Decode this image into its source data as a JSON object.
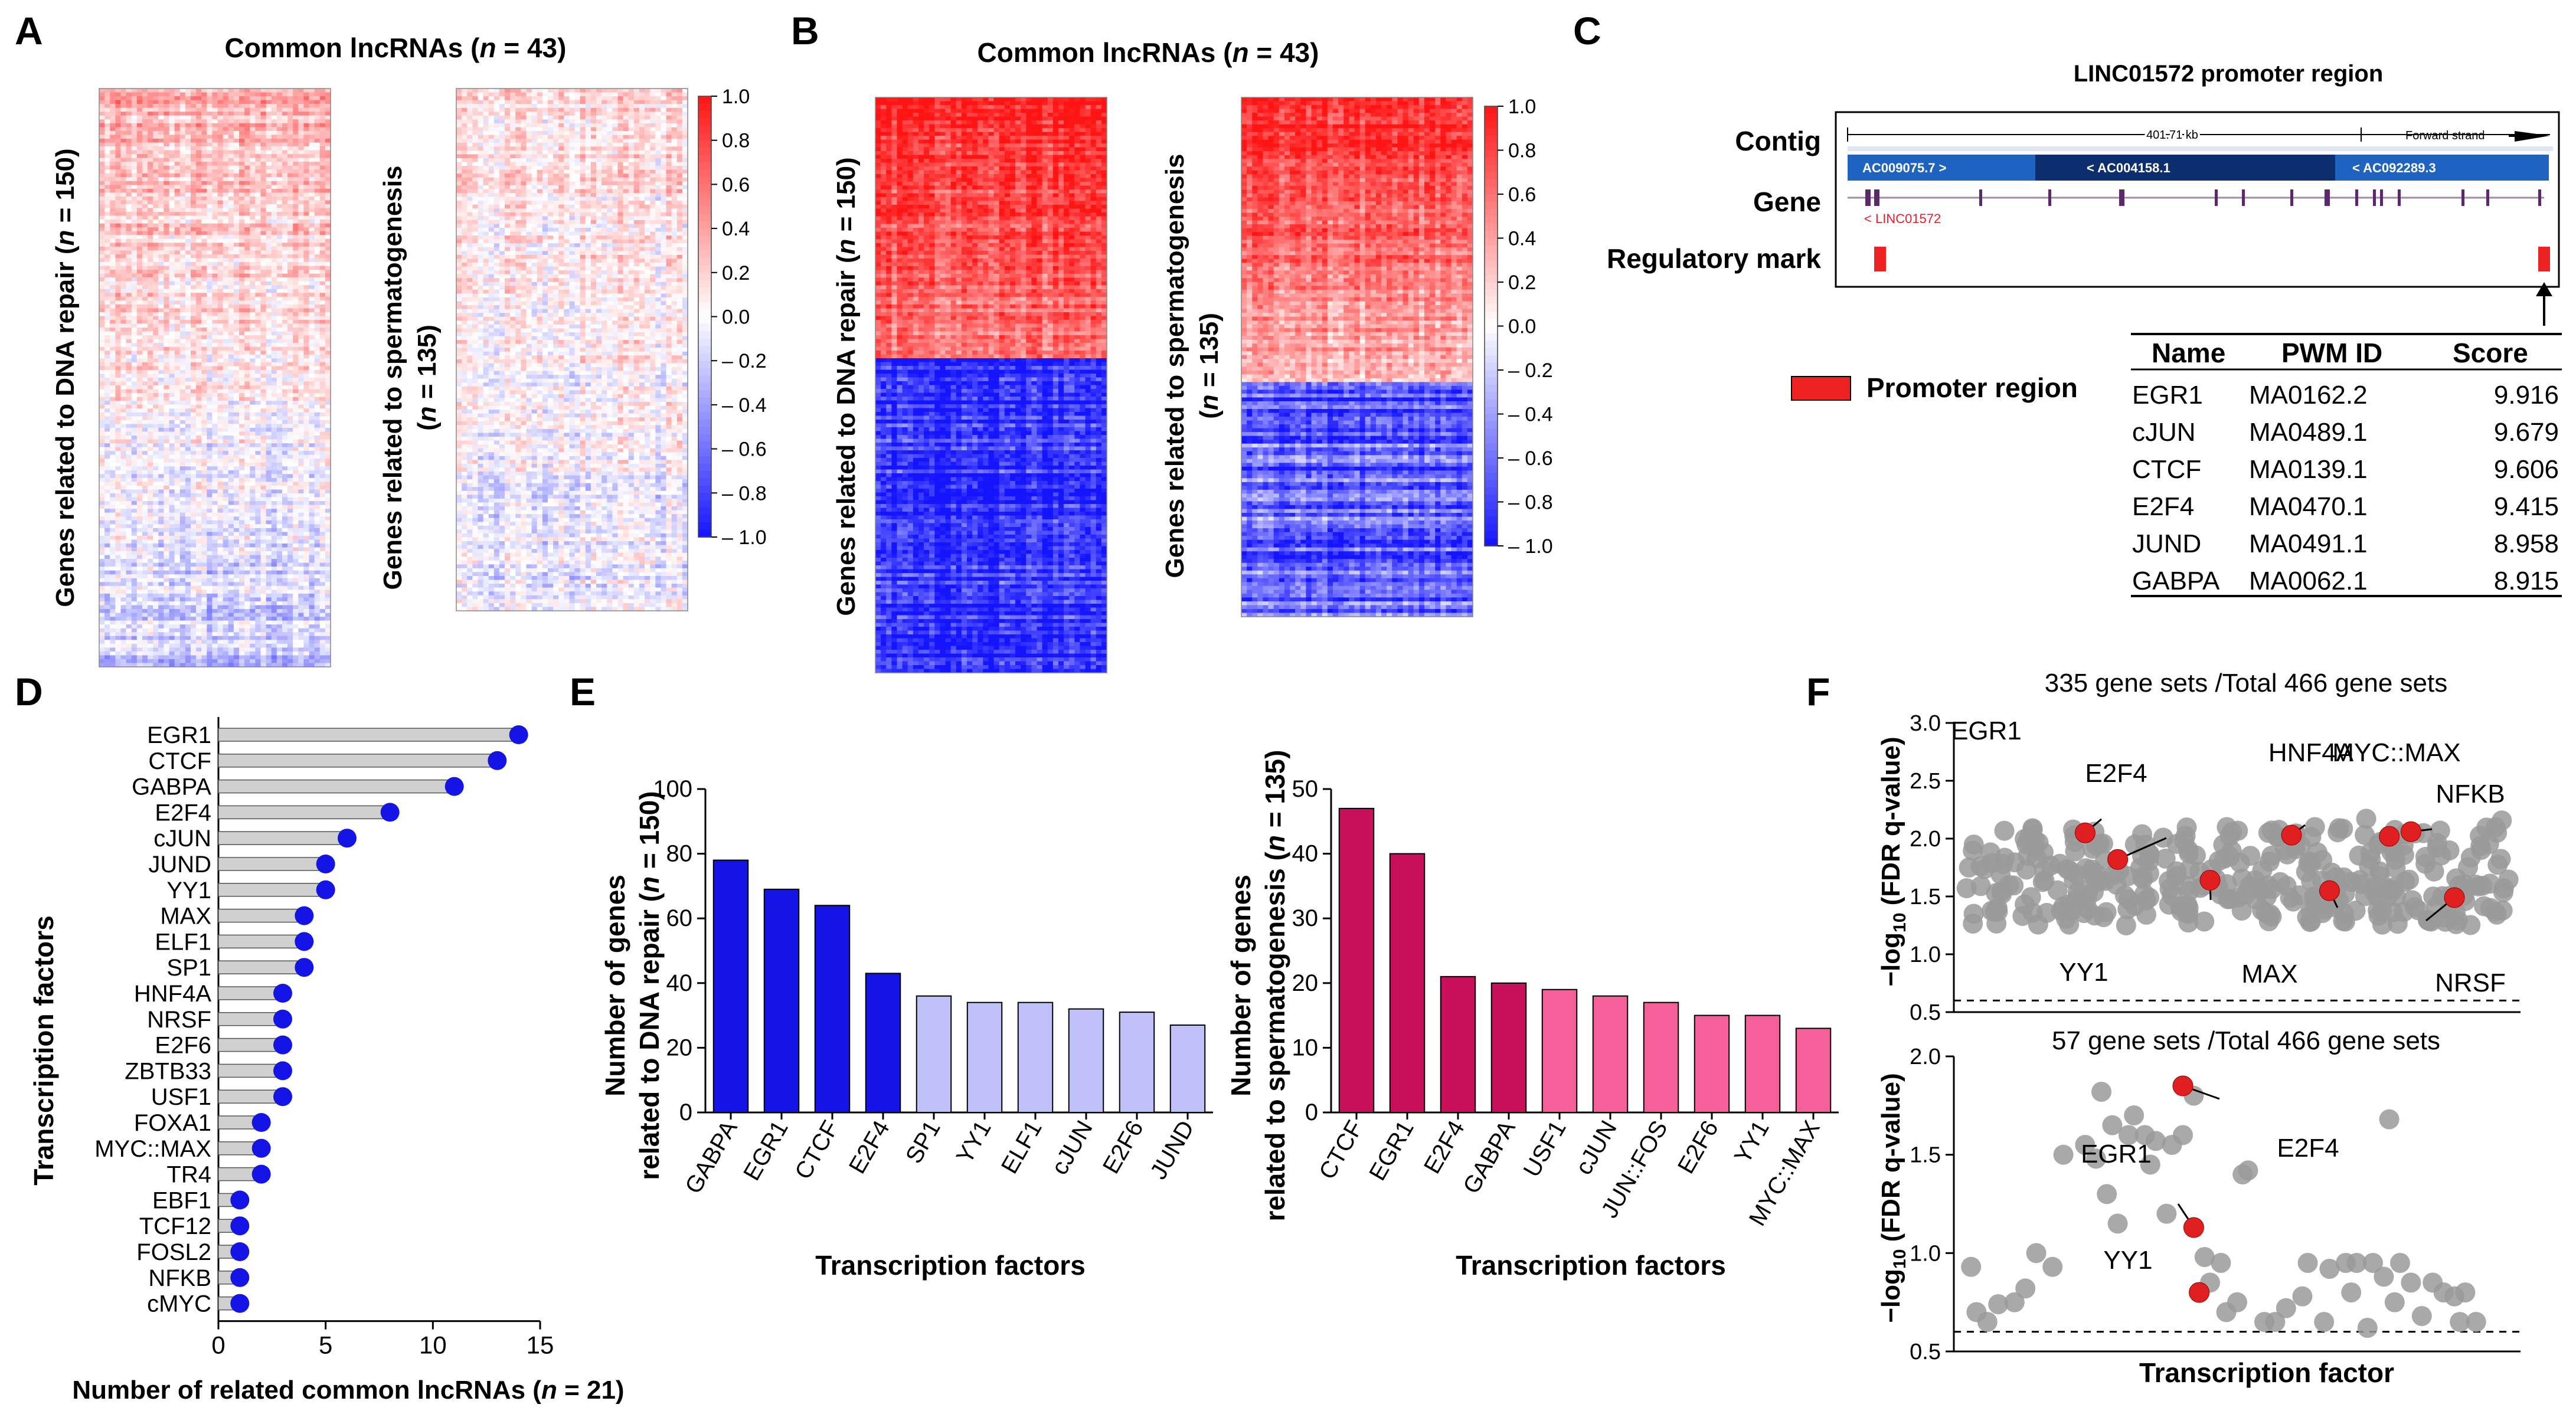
{
  "colors": {
    "red": "#ee1c1c",
    "blue": "#1414e6",
    "grey": "#9a9a9a",
    "pink_dark": "#c8105a",
    "pink_light": "#f5609a",
    "lavender": "#c0c0f8"
  },
  "panel_letters": [
    "A",
    "B",
    "C",
    "D",
    "E",
    "F"
  ],
  "chart_data": [
    {
      "panel": "A",
      "type": "heatmap",
      "title": "Common lncRNAs (n = 43)",
      "title_main": "Common lncRNAs (",
      "title_n": "n",
      "title_val": " = 43)",
      "left_ylabel": "Genes related to DNA repair (n = 150)",
      "left_ylabel_main": "Genes related to DNA repair (",
      "left_ylabel_n": "n",
      "left_ylabel_val": " = 150)",
      "right_ylabel_line1": "Genes related to spermatogenesis",
      "right_ylabel_line2": "(n = 135)",
      "right_ylabel2_pre": "(",
      "right_ylabel2_n": "n",
      "right_ylabel2_val": " = 135)",
      "rows_left": 150,
      "rows_right": 135,
      "cols": 43,
      "colorbar_ticks": [
        "1.0",
        "0.8",
        "0.6",
        "0.4",
        "0.2",
        "0.0",
        "– 0.2",
        "– 0.4",
        "– 0.6",
        "– 0.8",
        "– 1.0"
      ],
      "value_range": [
        -1,
        1
      ]
    },
    {
      "panel": "B",
      "type": "heatmap",
      "title": "Common lncRNAs (n = 43)",
      "title_main": "Common lncRNAs (",
      "title_n": "n",
      "title_val": " = 43)",
      "left_ylabel": "Genes related to DNA repair (n = 150)",
      "left_ylabel_main": "Genes related to DNA repair (",
      "left_ylabel_n": "n",
      "left_ylabel_val": " = 150)",
      "right_ylabel_line1": "Genes related to spermatogenesis",
      "right_ylabel_line2": "(n = 135)",
      "right_ylabel2_pre": "(",
      "right_ylabel2_n": "n",
      "right_ylabel2_val": " = 135)",
      "rows_left": 150,
      "rows_right": 135,
      "cols": 43,
      "colorbar_ticks": [
        "1.0",
        "0.8",
        "0.6",
        "0.4",
        "0.2",
        "0.0",
        "– 0.2",
        "– 0.4",
        "– 0.6",
        "– 0.8",
        "– 1.0"
      ],
      "value_range": [
        -1,
        1
      ]
    },
    {
      "panel": "C",
      "type": "table",
      "title": "LINC01572 promoter region",
      "track_labels": [
        "Contig",
        "Gene",
        "Regulatory mark"
      ],
      "scale_label": "401.71 kb",
      "strand_label": "Forward strand",
      "contigs": [
        "AC009075.7 >",
        "< AC004158.1",
        "< AC092289.3"
      ],
      "gene_label": "< LINC01572",
      "legend": "Promoter region",
      "columns": [
        "Name",
        "PWM ID",
        "Score"
      ],
      "rows": [
        [
          "EGR1",
          "MA0162.2",
          "9.916"
        ],
        [
          "cJUN",
          "MA0489.1",
          "9.679"
        ],
        [
          "CTCF",
          "MA0139.1",
          "9.606"
        ],
        [
          "E2F4",
          "MA0470.1",
          "9.415"
        ],
        [
          "JUND",
          "MA0491.1",
          "8.958"
        ],
        [
          "GABPA",
          "MA0062.1",
          "8.915"
        ]
      ]
    },
    {
      "panel": "D",
      "type": "bar",
      "xlabel": "Number of related common lncRNAs (n = 21)",
      "xlabel_main": "Number of related common lncRNAs (",
      "xlabel_n": "n",
      "xlabel_val": " = 21)",
      "ylabel": "Transcription factors",
      "categories": [
        "EGR1",
        "CTCF",
        "GABPA",
        "E2F4",
        "cJUN",
        "JUND",
        "YY1",
        "MAX",
        "ELF1",
        "SP1",
        "HNF4A",
        "NRSF",
        "E2F6",
        "ZBTB33",
        "USF1",
        "FOXA1",
        "MYC::MAX",
        "TR4",
        "EBF1",
        "TCF12",
        "FOSL2",
        "NFKB",
        "cMYC"
      ],
      "values": [
        14,
        13,
        11,
        8,
        6,
        5,
        5,
        4,
        4,
        4,
        3,
        3,
        3,
        3,
        3,
        2,
        2,
        2,
        1,
        1,
        1,
        1,
        1
      ],
      "xlim": [
        0,
        15
      ],
      "xticks": [
        "0",
        "5",
        "10",
        "15"
      ]
    },
    {
      "panel": "E-left",
      "type": "bar",
      "ylabel": "Number of genes related to DNA repair (n = 150)",
      "ylabel_line1": "Number of genes",
      "ylabel_line2_main": "related to DNA repair (",
      "ylabel_line2_n": "n",
      "ylabel_line2_val": " = 150)",
      "xlabel": "Transcription factors",
      "categories": [
        "GABPA",
        "EGR1",
        "CTCF",
        "E2F4",
        "SP1",
        "YY1",
        "ELF1",
        "cJUN",
        "E2F6",
        "JUND"
      ],
      "values": [
        78,
        69,
        64,
        43,
        36,
        34,
        34,
        32,
        31,
        27
      ],
      "highlight_count": 4,
      "ylim": [
        0,
        100
      ],
      "yticks": [
        "0",
        "20",
        "40",
        "60",
        "80",
        "100"
      ]
    },
    {
      "panel": "E-right",
      "type": "bar",
      "ylabel": "Number of genes related to spermatogenesis (n = 135)",
      "ylabel_line1": "Number of genes",
      "ylabel_line2_main": "related to spermatogenesis (",
      "ylabel_line2_n": "n",
      "ylabel_line2_val": " = 135)",
      "xlabel": "Transcription factors",
      "categories": [
        "CTCF",
        "EGR1",
        "E2F4",
        "GABPA",
        "USF1",
        "cJUN",
        "JUN::FOS",
        "E2F6",
        "YY1",
        "MYC::MAX"
      ],
      "values": [
        47,
        40,
        21,
        20,
        19,
        18,
        17,
        15,
        15,
        13
      ],
      "highlight_count": 4,
      "ylim": [
        0,
        50
      ],
      "yticks": [
        "0",
        "10",
        "20",
        "30",
        "40",
        "50"
      ]
    },
    {
      "panel": "F-top",
      "type": "scatter",
      "title": "335 gene sets /Total 466 gene sets",
      "ylabel": "−log10 (FDR q-value)",
      "ylim": [
        0.5,
        3.0
      ],
      "yticks": [
        "0.5",
        "1.0",
        "1.5",
        "2.0",
        "2.5",
        "3.0"
      ],
      "threshold": 0.6,
      "n_points": 335,
      "highlighted": [
        {
          "name": "EGR1",
          "x": 0.22,
          "y": 2.05
        },
        {
          "name": "E2F4",
          "x": 0.28,
          "y": 1.82
        },
        {
          "name": "HNF4A",
          "x": 0.6,
          "y": 2.03
        },
        {
          "name": "MYC::MAX",
          "x": 0.78,
          "y": 2.02
        },
        {
          "name": "NFKB",
          "x": 0.82,
          "y": 2.06
        },
        {
          "name": "YY1",
          "x": 0.45,
          "y": 1.64
        },
        {
          "name": "MAX",
          "x": 0.67,
          "y": 1.55
        },
        {
          "name": "NRSF",
          "x": 0.9,
          "y": 1.49
        }
      ]
    },
    {
      "panel": "F-bottom",
      "type": "scatter",
      "title": "57 gene sets /Total 466 gene sets",
      "ylabel": "−log10 (FDR q-value)",
      "xlabel": "Transcription factor",
      "ylim": [
        0.5,
        2.0
      ],
      "yticks": [
        "0.5",
        "1.0",
        "1.5",
        "2.0"
      ],
      "threshold": 0.6,
      "highlighted": [
        {
          "name": "E2F4",
          "x": 0.4,
          "y": 1.85
        },
        {
          "name": "EGR1",
          "x": 0.42,
          "y": 1.13
        },
        {
          "name": "YY1",
          "x": 0.43,
          "y": 0.8
        }
      ],
      "points": [
        [
          0.01,
          0.93
        ],
        [
          0.02,
          0.7
        ],
        [
          0.04,
          0.65
        ],
        [
          0.06,
          0.74
        ],
        [
          0.09,
          0.75
        ],
        [
          0.11,
          0.82
        ],
        [
          0.13,
          1.0
        ],
        [
          0.16,
          0.93
        ],
        [
          0.18,
          1.5
        ],
        [
          0.22,
          1.55
        ],
        [
          0.24,
          1.48
        ],
        [
          0.25,
          1.82
        ],
        [
          0.26,
          1.3
        ],
        [
          0.27,
          1.65
        ],
        [
          0.28,
          1.15
        ],
        [
          0.3,
          1.6
        ],
        [
          0.31,
          1.7
        ],
        [
          0.33,
          1.6
        ],
        [
          0.34,
          1.45
        ],
        [
          0.35,
          1.57
        ],
        [
          0.37,
          1.2
        ],
        [
          0.38,
          1.55
        ],
        [
          0.4,
          1.6
        ],
        [
          0.42,
          1.8
        ],
        [
          0.44,
          0.98
        ],
        [
          0.45,
          0.85
        ],
        [
          0.47,
          0.95
        ],
        [
          0.48,
          0.7
        ],
        [
          0.5,
          0.75
        ],
        [
          0.51,
          1.4
        ],
        [
          0.52,
          1.42
        ],
        [
          0.55,
          0.65
        ],
        [
          0.57,
          0.65
        ],
        [
          0.59,
          0.72
        ],
        [
          0.62,
          0.78
        ],
        [
          0.63,
          0.95
        ],
        [
          0.66,
          0.65
        ],
        [
          0.67,
          0.92
        ],
        [
          0.7,
          0.95
        ],
        [
          0.71,
          0.8
        ],
        [
          0.72,
          0.95
        ],
        [
          0.74,
          0.62
        ],
        [
          0.75,
          0.95
        ],
        [
          0.77,
          0.88
        ],
        [
          0.78,
          1.68
        ],
        [
          0.79,
          0.75
        ],
        [
          0.8,
          0.95
        ],
        [
          0.82,
          0.85
        ],
        [
          0.84,
          0.68
        ],
        [
          0.86,
          0.85
        ],
        [
          0.88,
          0.8
        ],
        [
          0.9,
          0.78
        ],
        [
          0.91,
          0.65
        ],
        [
          0.92,
          0.8
        ],
        [
          0.94,
          0.65
        ]
      ]
    }
  ]
}
